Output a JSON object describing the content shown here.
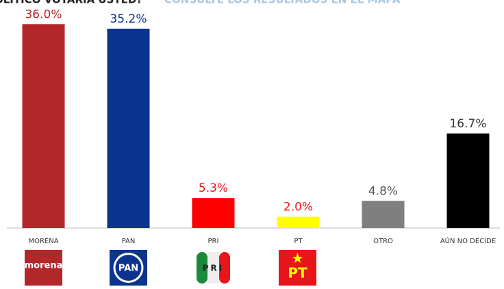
{
  "chart_data": {
    "type": "bar",
    "title": "OLÍTICO VOTARÍA USTED?",
    "subtitle": "CONSULTE LOS RESULTADOS EN EL MAPA",
    "categories": [
      "MORENA",
      "PAN",
      "PRI",
      "PT",
      "OTRO",
      "AÚN NO DECIDE"
    ],
    "values": [
      36.0,
      35.2,
      5.3,
      2.0,
      4.8,
      16.7
    ],
    "value_labels": [
      "36.0%",
      "35.2%",
      "5.3%",
      "2.0%",
      "4.8%",
      "16.7%"
    ],
    "colors": [
      "#b3272b",
      "#0b348f",
      "#fe0000",
      "#ffff00",
      "#7f7f7f",
      "#000000"
    ],
    "label_colors": [
      "#b3272b",
      "#0b348f",
      "#e8151b",
      "#e8151b",
      "#555555",
      "#333333"
    ],
    "logos": [
      "morena",
      "PAN",
      "PRI",
      "PT"
    ]
  }
}
